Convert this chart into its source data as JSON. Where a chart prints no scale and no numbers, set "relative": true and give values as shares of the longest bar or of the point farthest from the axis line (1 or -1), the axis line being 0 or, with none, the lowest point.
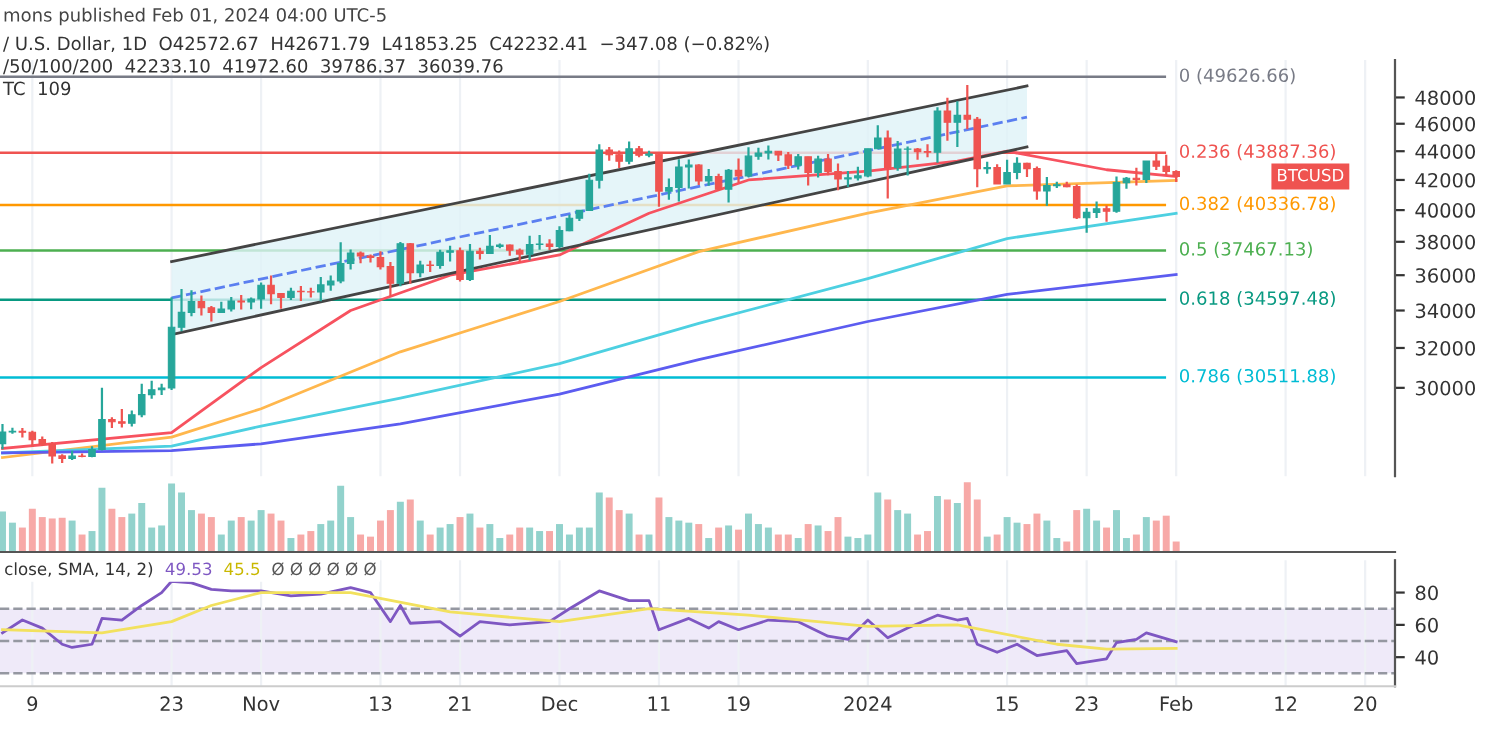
{
  "chart_data": [
    {
      "type": "candlestick",
      "x": [
        "2023-10-06",
        "2023-10-07",
        "2023-10-08",
        "2023-10-09",
        "2023-10-10",
        "2023-10-11",
        "2023-10-12",
        "2023-10-13",
        "2023-10-14",
        "2023-10-15",
        "2023-10-16",
        "2023-10-17",
        "2023-10-18",
        "2023-10-19",
        "2023-10-20",
        "2023-10-21",
        "2023-10-22",
        "2023-10-23",
        "2023-10-24",
        "2023-10-25",
        "2023-10-26",
        "2023-10-27",
        "2023-10-28",
        "2023-10-29",
        "2023-10-30",
        "2023-10-31",
        "2023-11-01",
        "2023-11-02",
        "2023-11-03",
        "2023-11-04",
        "2023-11-05",
        "2023-11-06",
        "2023-11-07",
        "2023-11-08",
        "2023-11-09",
        "2023-11-10",
        "2023-11-11",
        "2023-11-12",
        "2023-11-13",
        "2023-11-14",
        "2023-11-15",
        "2023-11-16",
        "2023-11-17",
        "2023-11-18",
        "2023-11-19",
        "2023-11-20",
        "2023-11-21",
        "2023-11-22",
        "2023-11-23",
        "2023-11-24",
        "2023-11-25",
        "2023-11-26",
        "2023-11-27",
        "2023-11-28",
        "2023-11-29",
        "2023-11-30",
        "2023-12-01",
        "2023-12-02",
        "2023-12-03",
        "2023-12-04",
        "2023-12-05",
        "2023-12-06",
        "2023-12-07",
        "2023-12-08",
        "2023-12-09",
        "2023-12-10",
        "2023-12-11",
        "2023-12-12",
        "2023-12-13",
        "2023-12-14",
        "2023-12-15",
        "2023-12-16",
        "2023-12-17",
        "2023-12-18",
        "2023-12-19",
        "2023-12-20",
        "2023-12-21",
        "2023-12-22",
        "2023-12-23",
        "2023-12-24",
        "2023-12-25",
        "2023-12-26",
        "2023-12-27",
        "2023-12-28",
        "2023-12-29",
        "2023-12-30",
        "2023-12-31",
        "2024-01-01",
        "2024-01-02",
        "2024-01-03",
        "2024-01-04",
        "2024-01-05",
        "2024-01-06",
        "2024-01-07",
        "2024-01-08",
        "2024-01-09",
        "2024-01-10",
        "2024-01-11",
        "2024-01-12",
        "2024-01-13",
        "2024-01-14",
        "2024-01-15",
        "2024-01-16",
        "2024-01-17",
        "2024-01-18",
        "2024-01-19",
        "2024-01-20",
        "2024-01-21",
        "2024-01-22",
        "2024-01-23",
        "2024-01-24",
        "2024-01-25",
        "2024-01-26",
        "2024-01-27",
        "2024-01-28",
        "2024-01-29",
        "2024-01-30",
        "2024-01-31",
        "2024-02-01"
      ],
      "ohlc": [
        [
          27410,
          28290,
          27160,
          27930
        ],
        [
          27930,
          28120,
          27850,
          27960
        ],
        [
          27960,
          28110,
          27680,
          27920
        ],
        [
          27920,
          27990,
          27260,
          27590
        ],
        [
          27590,
          27730,
          27300,
          27390
        ],
        [
          27390,
          27480,
          26540,
          26870
        ],
        [
          26870,
          26940,
          26560,
          26760
        ],
        [
          26760,
          27100,
          26690,
          26860
        ],
        [
          26860,
          26980,
          26810,
          26850
        ],
        [
          26850,
          27290,
          26810,
          27150
        ],
        [
          27150,
          30000,
          27110,
          28500
        ],
        [
          28500,
          28610,
          28110,
          28400
        ],
        [
          28400,
          28990,
          28130,
          28330
        ],
        [
          28330,
          28920,
          28180,
          28720
        ],
        [
          28720,
          30200,
          28600,
          29670
        ],
        [
          29670,
          30350,
          29480,
          29910
        ],
        [
          29910,
          30200,
          29660,
          29990
        ],
        [
          29990,
          34740,
          29890,
          33090
        ],
        [
          33090,
          35200,
          32880,
          33900
        ],
        [
          33900,
          35130,
          33690,
          34500
        ],
        [
          34500,
          34840,
          33720,
          34150
        ],
        [
          34150,
          34250,
          33400,
          33890
        ],
        [
          33890,
          34490,
          33860,
          34080
        ],
        [
          34080,
          34750,
          33940,
          34530
        ],
        [
          34530,
          34860,
          34060,
          34470
        ],
        [
          34470,
          34720,
          34070,
          34640
        ],
        [
          34640,
          35580,
          34100,
          35420
        ],
        [
          35420,
          35980,
          34350,
          34940
        ],
        [
          34940,
          34950,
          34100,
          34730
        ],
        [
          34730,
          35280,
          34580,
          35080
        ],
        [
          35080,
          35380,
          34530,
          35050
        ],
        [
          35050,
          35280,
          34730,
          35040
        ],
        [
          35040,
          35900,
          34520,
          35440
        ],
        [
          35440,
          35980,
          35110,
          35660
        ],
        [
          35660,
          37970,
          35530,
          36690
        ],
        [
          36690,
          37530,
          36330,
          37310
        ],
        [
          37310,
          37410,
          36710,
          37140
        ],
        [
          37140,
          37230,
          36750,
          37050
        ],
        [
          37050,
          37430,
          36340,
          36500
        ],
        [
          36500,
          36770,
          34800,
          35540
        ],
        [
          35540,
          37980,
          35360,
          37880
        ],
        [
          37880,
          37930,
          35500,
          36150
        ],
        [
          36150,
          36850,
          35880,
          36600
        ],
        [
          36600,
          36850,
          36180,
          36570
        ],
        [
          36570,
          37510,
          36380,
          37360
        ],
        [
          37360,
          37750,
          36800,
          37450
        ],
        [
          37450,
          37650,
          35630,
          35750
        ],
        [
          35750,
          37860,
          35670,
          37420
        ],
        [
          37420,
          37640,
          36920,
          37290
        ],
        [
          37290,
          38420,
          37250,
          37720
        ],
        [
          37720,
          37890,
          37600,
          37800
        ],
        [
          37800,
          37840,
          37150,
          37480
        ],
        [
          37480,
          37590,
          36720,
          37250
        ],
        [
          37250,
          38380,
          36880,
          37830
        ],
        [
          37830,
          38420,
          37520,
          37860
        ],
        [
          37860,
          38150,
          37500,
          37710
        ],
        [
          37710,
          38970,
          37610,
          38690
        ],
        [
          38690,
          39700,
          38650,
          39480
        ],
        [
          39480,
          40000,
          39300,
          39980
        ],
        [
          39980,
          42420,
          39980,
          41980
        ],
        [
          41980,
          44490,
          41420,
          44080
        ],
        [
          44080,
          44300,
          43330,
          43750
        ],
        [
          43750,
          44050,
          42820,
          43290
        ],
        [
          43290,
          44700,
          43080,
          44170
        ],
        [
          44170,
          44370,
          43580,
          43710
        ],
        [
          43710,
          44040,
          43580,
          43790
        ],
        [
          43790,
          43810,
          40220,
          41250
        ],
        [
          41250,
          42100,
          40680,
          41490
        ],
        [
          41490,
          43430,
          40560,
          42890
        ],
        [
          42890,
          43420,
          41420,
          43020
        ],
        [
          43020,
          43090,
          41660,
          41930
        ],
        [
          41930,
          42750,
          41610,
          42240
        ],
        [
          42240,
          42420,
          41250,
          41370
        ],
        [
          41370,
          42760,
          40500,
          42660
        ],
        [
          42660,
          43480,
          41820,
          42270
        ],
        [
          42270,
          44280,
          42180,
          43650
        ],
        [
          43650,
          44240,
          43400,
          43870
        ],
        [
          43870,
          44400,
          43410,
          44000
        ],
        [
          44000,
          44020,
          43300,
          43740
        ],
        [
          43740,
          43950,
          42760,
          43020
        ],
        [
          43020,
          43800,
          42720,
          43610
        ],
        [
          43610,
          43610,
          41630,
          42520
        ],
        [
          42520,
          43680,
          42170,
          43440
        ],
        [
          43440,
          43800,
          42320,
          42580
        ],
        [
          42580,
          43140,
          41300,
          42070
        ],
        [
          42070,
          42610,
          41520,
          42140
        ],
        [
          42140,
          42900,
          41970,
          42280
        ],
        [
          42280,
          44180,
          42190,
          44180
        ],
        [
          44180,
          45880,
          44150,
          44950
        ],
        [
          44950,
          45500,
          40750,
          42850
        ],
        [
          42850,
          44730,
          42630,
          44150
        ],
        [
          44150,
          44340,
          42300,
          44160
        ],
        [
          44160,
          44230,
          43400,
          43970
        ],
        [
          43970,
          44500,
          43570,
          43930
        ],
        [
          43930,
          47250,
          43180,
          46950
        ],
        [
          46950,
          47970,
          44750,
          46110
        ],
        [
          46110,
          47700,
          44300,
          46630
        ],
        [
          46630,
          48970,
          45600,
          46340
        ],
        [
          46340,
          46500,
          41500,
          42780
        ],
        [
          42780,
          43260,
          42430,
          42850
        ],
        [
          42850,
          43080,
          41720,
          41730
        ],
        [
          41730,
          43400,
          41720,
          42510
        ],
        [
          42510,
          43580,
          42050,
          43140
        ],
        [
          43140,
          43190,
          42200,
          42780
        ],
        [
          42780,
          42930,
          40680,
          41260
        ],
        [
          41260,
          42200,
          40280,
          41620
        ],
        [
          41620,
          41870,
          41450,
          41670
        ],
        [
          41670,
          41880,
          41500,
          41550
        ],
        [
          41550,
          41700,
          39430,
          39510
        ],
        [
          39510,
          40130,
          38560,
          39850
        ],
        [
          39850,
          40560,
          39490,
          40080
        ],
        [
          40080,
          40300,
          39260,
          39930
        ],
        [
          39930,
          42230,
          39830,
          41820
        ],
        [
          41820,
          42200,
          41400,
          42120
        ],
        [
          42120,
          42840,
          41620,
          42030
        ],
        [
          42030,
          43310,
          41800,
          43300
        ],
        [
          43300,
          43880,
          42680,
          42940
        ],
        [
          42940,
          43750,
          42300,
          42580
        ],
        [
          42572.67,
          42671.79,
          41853.25,
          42232.41
        ]
      ],
      "colors": [
        "#26a69a",
        "#26a69a",
        "#ef5350",
        "#ef5350",
        "#ef5350",
        "#ef5350",
        "#ef5350",
        "#26a69a",
        "#ef5350",
        "#26a69a",
        "#26a69a",
        "#ef5350",
        "#ef5350",
        "#26a69a",
        "#26a69a",
        "#26a69a",
        "#26a69a",
        "#26a69a",
        "#26a69a",
        "#26a69a",
        "#ef5350",
        "#ef5350",
        "#26a69a",
        "#26a69a",
        "#ef5350",
        "#26a69a",
        "#26a69a",
        "#ef5350",
        "#ef5350",
        "#26a69a",
        "#ef5350",
        "#ef5350",
        "#26a69a",
        "#26a69a",
        "#26a69a",
        "#26a69a",
        "#ef5350",
        "#ef5350",
        "#ef5350",
        "#ef5350",
        "#26a69a",
        "#ef5350",
        "#26a69a",
        "#ef5350",
        "#26a69a",
        "#26a69a",
        "#ef5350",
        "#26a69a",
        "#ef5350",
        "#26a69a",
        "#26a69a",
        "#ef5350",
        "#ef5350",
        "#26a69a",
        "#26a69a",
        "#ef5350",
        "#26a69a",
        "#26a69a",
        "#26a69a",
        "#26a69a",
        "#26a69a",
        "#ef5350",
        "#ef5350",
        "#26a69a",
        "#ef5350",
        "#26a69a",
        "#ef5350",
        "#26a69a",
        "#26a69a",
        "#26a69a",
        "#ef5350",
        "#26a69a",
        "#ef5350",
        "#26a69a",
        "#ef5350",
        "#26a69a",
        "#26a69a",
        "#26a69a",
        "#ef5350",
        "#ef5350",
        "#26a69a",
        "#ef5350",
        "#26a69a",
        "#ef5350",
        "#ef5350",
        "#26a69a",
        "#26a69a",
        "#26a69a",
        "#26a69a",
        "#ef5350",
        "#26a69a",
        "#26a69a",
        "#ef5350",
        "#ef5350",
        "#26a69a",
        "#ef5350",
        "#26a69a",
        "#ef5350",
        "#ef5350",
        "#26a69a",
        "#ef5350",
        "#26a69a",
        "#26a69a",
        "#ef5350",
        "#ef5350",
        "#26a69a",
        "#26a69a",
        "#ef5350",
        "#ef5350",
        "#26a69a",
        "#26a69a",
        "#ef5350",
        "#26a69a",
        "#26a69a",
        "#ef5350",
        "#26a69a",
        "#ef5350",
        "#ef5350",
        "#ef5350"
      ],
      "series": [
        {
          "type": "line",
          "color": "#f7525f",
          "x": [
            "2023-10-06",
            "2023-10-23",
            "2023-11-01",
            "2023-11-10",
            "2023-11-20",
            "2023-12-01",
            "2023-12-10",
            "2023-12-20",
            "2024-01-01",
            "2024-01-10",
            "2024-01-15",
            "2024-01-25",
            "2024-02-01"
          ],
          "values": [
            27200,
            27900,
            31000,
            34000,
            36000,
            37200,
            39800,
            42000,
            42600,
            43300,
            44000,
            42700,
            42233.1
          ]
        },
        {
          "type": "line",
          "color": "#ffb74d",
          "x": [
            "2023-10-06",
            "2023-10-23",
            "2023-11-01",
            "2023-11-15",
            "2023-12-01",
            "2023-12-15",
            "2024-01-01",
            "2024-01-15",
            "2024-02-01"
          ],
          "values": [
            26800,
            27700,
            29000,
            31800,
            34500,
            37400,
            39800,
            41600,
            41972.6
          ]
        },
        {
          "type": "line",
          "color": "#4dd0e1",
          "x": [
            "2023-10-06",
            "2023-10-23",
            "2023-11-01",
            "2023-11-15",
            "2023-12-01",
            "2023-12-15",
            "2024-01-01",
            "2024-01-15",
            "2024-02-01"
          ],
          "values": [
            27000,
            27300,
            28200,
            29500,
            31200,
            33300,
            35800,
            38200,
            39786.37
          ]
        },
        {
          "type": "line",
          "color": "#5c5cf0",
          "x": [
            "2023-10-06",
            "2023-10-23",
            "2023-11-01",
            "2023-11-15",
            "2023-12-01",
            "2023-12-15",
            "2024-01-01",
            "2024-01-15",
            "2024-02-01"
          ],
          "values": [
            27000,
            27100,
            27400,
            28300,
            29700,
            31400,
            33400,
            34900,
            36039.76
          ]
        },
        {
          "type": "line",
          "color": "#444444",
          "x": [
            "2023-10-23",
            "2024-01-17"
          ],
          "values": [
            32700,
            44300
          ]
        },
        {
          "type": "line",
          "color": "#444444",
          "x": [
            "2023-10-23",
            "2024-01-17"
          ],
          "values": [
            36800,
            48900
          ]
        },
        {
          "type": "line",
          "color": "#5b7ff0",
          "line_style": "dashed",
          "x": [
            "2023-10-23",
            "2024-01-17"
          ],
          "values": [
            34700,
            46500
          ],
          "lower": [
            32700,
            44300
          ],
          "upper": [
            36800,
            48900
          ]
        }
      ],
      "ref_lines": [
        {
          "axis": "y",
          "value": 49626.66,
          "label": "0 (49626.66)",
          "color": "#787b86"
        },
        {
          "axis": "y",
          "value": 43887.36,
          "label": "0.236 (43887.36)",
          "color": "#ef5350"
        },
        {
          "axis": "y",
          "value": 40336.78,
          "label": "0.382 (40336.78)",
          "color": "#ff9800"
        },
        {
          "axis": "y",
          "value": 37467.13,
          "label": "0.5 (37467.13)",
          "color": "#4caf50"
        },
        {
          "axis": "y",
          "value": 34597.48,
          "label": "0.618 (34597.48)",
          "color": "#089981"
        },
        {
          "axis": "y",
          "value": 30511.88,
          "label": "0.786 (30511.88)",
          "color": "#00bcd4"
        }
      ],
      "annotations": [
        "mons published Feb 01, 2024 04:00 UTC-5",
        "/ U.S. Dollar, 1D  O42572.67  H42671.79  L41853.25  C42232.41  −347.08 (−0.82%)",
        "/50/100/200  42233.10  41972.60  39786.37  36039.76",
        "TC  109",
        "BTCUSD"
      ],
      "log": "y",
      "ylim": [
        26000,
        51000
      ],
      "xlim": [
        "2023-10-05T18:00",
        "2024-02-23"
      ],
      "xticks": [
        {
          "value": "2023-10-09",
          "label": null
        },
        {
          "value": "2023-10-23",
          "label": null
        },
        {
          "value": "2023-11-01",
          "label": null
        },
        {
          "value": "2023-11-13",
          "label": null
        },
        {
          "value": "2023-11-21",
          "label": null
        },
        {
          "value": "2023-12-01",
          "label": null
        },
        {
          "value": "2023-12-11",
          "label": null
        },
        {
          "value": "2023-12-19",
          "label": null
        },
        {
          "value": "2024-01-01",
          "label": null
        },
        {
          "value": "2024-01-15",
          "label": null
        },
        {
          "value": "2024-01-23",
          "label": null
        },
        {
          "value": "2024-02-01",
          "label": null
        },
        {
          "value": "2024-02-12",
          "label": null
        },
        {
          "value": "2024-02-20",
          "label": null
        }
      ],
      "yticks": [
        30000,
        32000,
        34000,
        36000,
        38000,
        40000,
        42000,
        44000,
        46000,
        48000
      ],
      "tick_labels": "y",
      "grid": "x"
    },
    {
      "type": "bar",
      "categories": [
        null,
        null,
        null,
        null,
        null,
        null,
        null,
        null,
        null,
        null,
        null,
        null,
        null,
        null,
        null,
        null,
        null,
        null,
        null,
        null,
        null,
        null,
        null,
        null,
        null,
        null,
        null,
        null,
        null,
        null,
        null,
        null,
        null,
        null,
        null,
        null,
        null,
        null,
        null,
        null,
        null,
        null,
        null,
        null,
        null,
        null,
        null,
        null,
        null,
        null,
        null,
        null,
        null,
        null,
        null,
        null,
        null,
        null,
        null,
        null,
        null,
        null,
        null,
        null,
        null,
        null,
        null,
        null,
        null,
        null,
        null,
        null,
        null,
        null,
        null,
        null,
        null,
        null,
        null,
        null,
        null,
        null,
        null,
        null,
        null,
        null,
        null,
        null,
        null,
        null,
        null,
        null,
        null,
        null,
        null,
        null,
        null,
        null,
        null,
        null,
        null,
        null,
        null,
        null,
        null,
        null,
        null,
        null,
        null,
        null,
        null,
        null,
        null,
        null,
        null,
        null,
        null,
        null,
        null
      ],
      "values": [
        0.58,
        0.42,
        0.35,
        0.62,
        0.5,
        0.48,
        0.49,
        0.45,
        0.25,
        0.3,
        0.92,
        0.62,
        0.5,
        0.55,
        0.7,
        0.35,
        0.38,
        0.98,
        0.85,
        0.6,
        0.55,
        0.5,
        0.25,
        0.45,
        0.5,
        0.45,
        0.6,
        0.55,
        0.45,
        0.2,
        0.25,
        0.3,
        0.4,
        0.45,
        0.95,
        0.5,
        0.25,
        0.22,
        0.45,
        0.6,
        0.72,
        0.75,
        0.45,
        0.25,
        0.35,
        0.4,
        0.5,
        0.55,
        0.35,
        0.4,
        0.2,
        0.25,
        0.35,
        0.35,
        0.3,
        0.3,
        0.4,
        0.25,
        0.35,
        0.35,
        0.85,
        0.78,
        0.6,
        0.55,
        0.25,
        0.25,
        0.78,
        0.5,
        0.45,
        0.42,
        0.4,
        0.2,
        0.35,
        0.38,
        0.32,
        0.55,
        0.4,
        0.35,
        0.25,
        0.25,
        0.2,
        0.4,
        0.38,
        0.3,
        0.5,
        0.22,
        0.2,
        0.25,
        0.85,
        0.75,
        0.6,
        0.55,
        0.25,
        0.3,
        0.8,
        0.75,
        0.7,
        1.0,
        0.75,
        0.22,
        0.25,
        0.5,
        0.42,
        0.4,
        0.55,
        0.45,
        0.2,
        0.15,
        0.6,
        0.62,
        0.45,
        0.35,
        0.6,
        0.2,
        0.25,
        0.5,
        0.45,
        0.52,
        0.15
      ],
      "colors": [
        "#92d2cc",
        "#92d2cc",
        "#f7a9a7",
        "#f7a9a7",
        "#f7a9a7",
        "#f7a9a7",
        "#f7a9a7",
        "#92d2cc",
        "#f7a9a7",
        "#92d2cc",
        "#92d2cc",
        "#f7a9a7",
        "#f7a9a7",
        "#92d2cc",
        "#92d2cc",
        "#92d2cc",
        "#92d2cc",
        "#92d2cc",
        "#92d2cc",
        "#92d2cc",
        "#f7a9a7",
        "#f7a9a7",
        "#92d2cc",
        "#92d2cc",
        "#f7a9a7",
        "#92d2cc",
        "#92d2cc",
        "#f7a9a7",
        "#f7a9a7",
        "#92d2cc",
        "#f7a9a7",
        "#f7a9a7",
        "#92d2cc",
        "#92d2cc",
        "#92d2cc",
        "#92d2cc",
        "#f7a9a7",
        "#f7a9a7",
        "#f7a9a7",
        "#f7a9a7",
        "#92d2cc",
        "#f7a9a7",
        "#92d2cc",
        "#f7a9a7",
        "#92d2cc",
        "#92d2cc",
        "#f7a9a7",
        "#92d2cc",
        "#f7a9a7",
        "#92d2cc",
        "#92d2cc",
        "#f7a9a7",
        "#f7a9a7",
        "#92d2cc",
        "#92d2cc",
        "#f7a9a7",
        "#92d2cc",
        "#92d2cc",
        "#92d2cc",
        "#92d2cc",
        "#92d2cc",
        "#f7a9a7",
        "#f7a9a7",
        "#92d2cc",
        "#f7a9a7",
        "#92d2cc",
        "#f7a9a7",
        "#92d2cc",
        "#92d2cc",
        "#92d2cc",
        "#f7a9a7",
        "#92d2cc",
        "#f7a9a7",
        "#92d2cc",
        "#f7a9a7",
        "#92d2cc",
        "#92d2cc",
        "#92d2cc",
        "#f7a9a7",
        "#f7a9a7",
        "#92d2cc",
        "#f7a9a7",
        "#92d2cc",
        "#f7a9a7",
        "#f7a9a7",
        "#92d2cc",
        "#92d2cc",
        "#92d2cc",
        "#92d2cc",
        "#f7a9a7",
        "#92d2cc",
        "#92d2cc",
        "#f7a9a7",
        "#f7a9a7",
        "#92d2cc",
        "#f7a9a7",
        "#92d2cc",
        "#f7a9a7",
        "#f7a9a7",
        "#92d2cc",
        "#f7a9a7",
        "#92d2cc",
        "#92d2cc",
        "#f7a9a7",
        "#f7a9a7",
        "#92d2cc",
        "#92d2cc",
        "#f7a9a7",
        "#f7a9a7",
        "#92d2cc",
        "#92d2cc",
        "#f7a9a7",
        "#92d2cc",
        "#92d2cc",
        "#f7a9a7",
        "#92d2cc",
        "#f7a9a7",
        "#f7a9a7",
        "#f7a9a7"
      ],
      "relative": true
    },
    {
      "type": "line",
      "series": [
        {
          "type": "line",
          "color": "#7e57c2",
          "x": [
            "2023-10-06",
            "2023-10-08",
            "2023-10-10",
            "2023-10-12",
            "2023-10-13",
            "2023-10-15",
            "2023-10-16",
            "2023-10-18",
            "2023-10-20",
            "2023-10-22",
            "2023-10-23",
            "2023-10-25",
            "2023-10-27",
            "2023-10-29",
            "2023-11-01",
            "2023-11-04",
            "2023-11-07",
            "2023-11-10",
            "2023-11-12",
            "2023-11-14",
            "2023-11-15",
            "2023-11-16",
            "2023-11-19",
            "2023-11-21",
            "2023-11-23",
            "2023-11-26",
            "2023-11-30",
            "2023-12-02",
            "2023-12-05",
            "2023-12-08",
            "2023-12-10",
            "2023-12-11",
            "2023-12-14",
            "2023-12-16",
            "2023-12-17",
            "2023-12-19",
            "2023-12-22",
            "2023-12-25",
            "2023-12-28",
            "2023-12-30",
            "2024-01-01",
            "2024-01-03",
            "2024-01-05",
            "2024-01-08",
            "2024-01-10",
            "2024-01-11",
            "2024-01-12",
            "2024-01-14",
            "2024-01-16",
            "2024-01-18",
            "2024-01-21",
            "2024-01-22",
            "2024-01-25",
            "2024-01-26",
            "2024-01-28",
            "2024-01-29",
            "2024-02-01"
          ],
          "values": [
            55,
            63,
            58,
            48,
            46,
            48,
            64,
            63,
            72,
            80,
            87,
            86,
            82,
            81,
            81,
            78,
            79,
            83,
            80,
            62,
            72,
            61,
            62,
            53,
            62,
            60,
            62,
            70,
            81,
            75,
            75,
            57,
            64,
            58,
            62,
            57,
            63,
            62,
            53,
            51,
            63,
            52,
            58,
            66,
            63,
            64,
            48,
            43,
            48,
            41,
            44,
            36,
            39,
            49,
            51,
            55,
            49.53
          ]
        },
        {
          "type": "line",
          "color": "#f2e15e",
          "x": [
            "2023-10-06",
            "2023-10-16",
            "2023-10-23",
            "2023-10-27",
            "2023-11-01",
            "2023-11-10",
            "2023-11-20",
            "2023-12-01",
            "2023-12-10",
            "2023-12-20",
            "2024-01-01",
            "2024-01-10",
            "2024-01-20",
            "2024-01-25",
            "2024-02-01"
          ],
          "values": [
            57,
            55,
            62,
            72,
            80,
            80,
            68,
            62,
            70,
            66,
            59,
            60,
            48,
            45,
            45.5
          ]
        }
      ],
      "ref_lines": [
        {
          "axis": "y",
          "value": 70,
          "color": "#9598a1",
          "line_style": "dashed"
        },
        {
          "axis": "y",
          "value": 50,
          "color": "#9598a1",
          "line_style": "dashed"
        },
        {
          "axis": "y",
          "value": 30,
          "color": "#9598a1",
          "line_style": "dashed"
        }
      ],
      "bands": [
        {
          "axis": "y",
          "from": 30,
          "to": 70,
          "color": "#efeaf9"
        }
      ],
      "annotations": [
        "close, SMA, 14, 2)",
        "49.53",
        "45.5",
        "Ø Ø Ø Ø Ø Ø"
      ],
      "ylim": [
        22,
        100
      ],
      "yticks": [
        40,
        60,
        80
      ],
      "xlim": [
        "2023-10-05T18:00",
        "2024-02-23"
      ],
      "xticks": [
        {
          "value": "2023-10-09",
          "label": "9"
        },
        {
          "value": "2023-10-23",
          "label": "23"
        },
        {
          "value": "2023-11-01",
          "label": "Nov"
        },
        {
          "value": "2023-11-13",
          "label": "13"
        },
        {
          "value": "2023-11-21",
          "label": "21"
        },
        {
          "value": "2023-12-01",
          "label": "Dec"
        },
        {
          "value": "2023-12-11",
          "label": "11"
        },
        {
          "value": "2023-12-19",
          "label": "19"
        },
        {
          "value": "2024-01-01",
          "label": "2024"
        },
        {
          "value": "2024-01-15",
          "label": "15"
        },
        {
          "value": "2024-01-23",
          "label": "23"
        },
        {
          "value": "2024-02-01",
          "label": "Feb"
        },
        {
          "value": "2024-02-12",
          "label": "12"
        },
        {
          "value": "2024-02-20",
          "label": "20"
        }
      ],
      "grid": "x"
    }
  ]
}
